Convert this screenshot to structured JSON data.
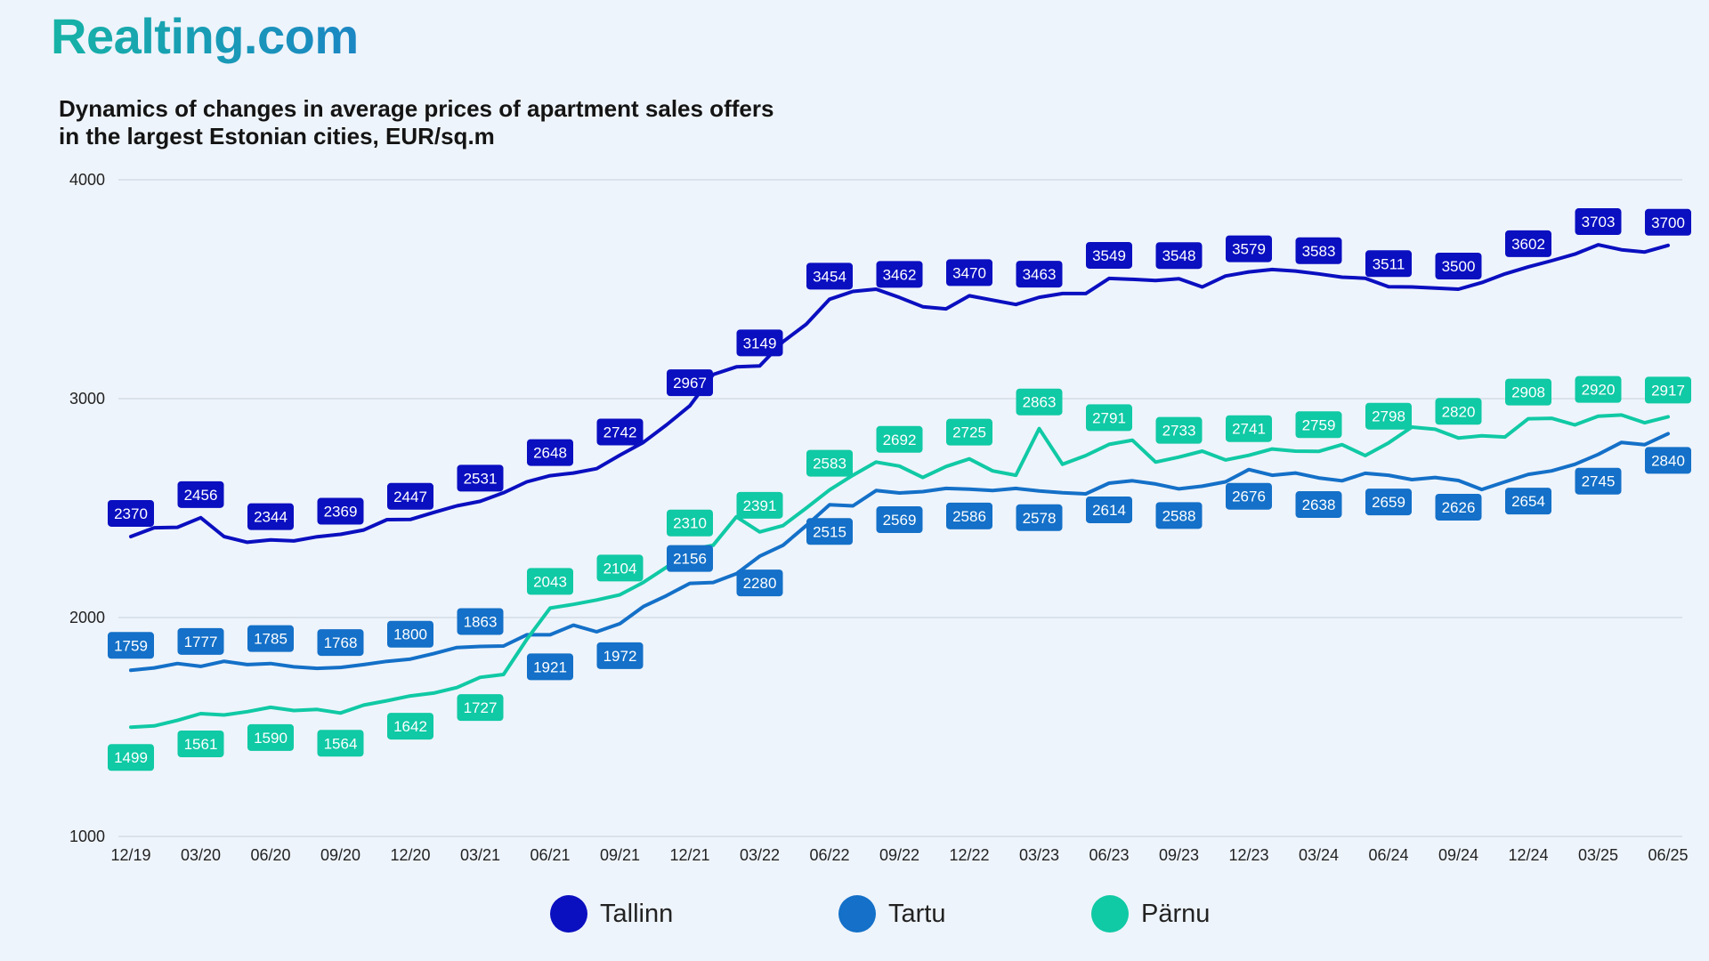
{
  "brand": {
    "logo_text": "Realting.com"
  },
  "chart_data": {
    "type": "line",
    "title_lines": [
      "Dynamics of changes in average prices of apartment sales offers",
      "in the largest Estonian cities, EUR/sq.m"
    ],
    "ylim": [
      1000,
      4000
    ],
    "yticks": [
      1000,
      2000,
      3000,
      4000
    ],
    "grid": true,
    "legend_position": "bottom",
    "x_tick_labels": [
      "12/19",
      "03/20",
      "06/20",
      "09/20",
      "12/20",
      "03/21",
      "06/21",
      "09/21",
      "12/21",
      "03/22",
      "06/22",
      "09/22",
      "12/22",
      "03/23",
      "06/23",
      "09/23",
      "12/23",
      "03/24",
      "06/24",
      "09/24",
      "12/24",
      "03/25",
      "06/25"
    ],
    "series": [
      {
        "name": "Tallinn",
        "color": "#0a0fc0",
        "values": [
          2370,
          2410,
          2412,
          2456,
          2370,
          2344,
          2355,
          2350,
          2369,
          2380,
          2400,
          2447,
          2448,
          2480,
          2510,
          2531,
          2570,
          2620,
          2648,
          2660,
          2680,
          2742,
          2800,
          2880,
          2967,
          3110,
          3145,
          3149,
          3260,
          3340,
          3454,
          3490,
          3500,
          3462,
          3420,
          3410,
          3470,
          3450,
          3430,
          3463,
          3480,
          3480,
          3549,
          3545,
          3540,
          3548,
          3510,
          3560,
          3579,
          3590,
          3583,
          3570,
          3555,
          3550,
          3511,
          3510,
          3505,
          3500,
          3530,
          3570,
          3602,
          3630,
          3660,
          3703,
          3680,
          3670,
          3700
        ],
        "labels": [
          [
            0,
            2370
          ],
          [
            3,
            2456
          ],
          [
            6,
            2344
          ],
          [
            9,
            2369
          ],
          [
            12,
            2447
          ],
          [
            15,
            2531
          ],
          [
            18,
            2648
          ],
          [
            21,
            2742
          ],
          [
            24,
            2967
          ],
          [
            27,
            3149
          ],
          [
            30,
            3454
          ],
          [
            33,
            3462
          ],
          [
            36,
            3470
          ],
          [
            39,
            3463
          ],
          [
            42,
            3549
          ],
          [
            45,
            3548
          ],
          [
            48,
            3579
          ],
          [
            51,
            3583
          ],
          [
            54,
            3511
          ],
          [
            57,
            3500
          ],
          [
            60,
            3602
          ],
          [
            63,
            3703
          ],
          [
            66,
            3700
          ]
        ]
      },
      {
        "name": "Tartu",
        "color": "#1470c8",
        "values": [
          1759,
          1770,
          1790,
          1777,
          1800,
          1785,
          1790,
          1775,
          1768,
          1772,
          1785,
          1800,
          1810,
          1835,
          1863,
          1868,
          1870,
          1921,
          1921,
          1965,
          1935,
          1972,
          2050,
          2100,
          2156,
          2160,
          2200,
          2280,
          2330,
          2420,
          2515,
          2510,
          2580,
          2569,
          2575,
          2590,
          2586,
          2580,
          2590,
          2578,
          2570,
          2565,
          2614,
          2625,
          2610,
          2588,
          2600,
          2620,
          2676,
          2650,
          2660,
          2638,
          2625,
          2659,
          2650,
          2630,
          2640,
          2626,
          2585,
          2620,
          2654,
          2670,
          2700,
          2745,
          2800,
          2790,
          2840
        ],
        "labels": [
          [
            0,
            1759
          ],
          [
            3,
            1777
          ],
          [
            6,
            1785
          ],
          [
            9,
            1768
          ],
          [
            12,
            1800
          ],
          [
            15,
            1863
          ],
          [
            18,
            1921
          ],
          [
            21,
            1972
          ],
          [
            24,
            2156
          ],
          [
            27,
            2280
          ],
          [
            30,
            2515
          ],
          [
            33,
            2569
          ],
          [
            36,
            2586
          ],
          [
            39,
            2578
          ],
          [
            42,
            2614
          ],
          [
            45,
            2588
          ],
          [
            48,
            2676
          ],
          [
            51,
            2638
          ],
          [
            54,
            2659
          ],
          [
            57,
            2626
          ],
          [
            60,
            2654
          ],
          [
            63,
            2745
          ],
          [
            66,
            2840
          ]
        ]
      },
      {
        "name": "Pärnu",
        "color": "#10c9a5",
        "values": [
          1499,
          1505,
          1530,
          1561,
          1555,
          1570,
          1590,
          1575,
          1580,
          1564,
          1600,
          1620,
          1642,
          1655,
          1680,
          1727,
          1740,
          1900,
          2043,
          2060,
          2080,
          2104,
          2160,
          2230,
          2310,
          2330,
          2460,
          2391,
          2420,
          2500,
          2583,
          2650,
          2710,
          2692,
          2640,
          2690,
          2725,
          2670,
          2650,
          2863,
          2700,
          2740,
          2791,
          2810,
          2710,
          2733,
          2760,
          2720,
          2741,
          2770,
          2760,
          2759,
          2790,
          2740,
          2798,
          2870,
          2860,
          2820,
          2830,
          2825,
          2908,
          2910,
          2880,
          2920,
          2925,
          2890,
          2917
        ],
        "labels": [
          [
            0,
            1499
          ],
          [
            3,
            1561
          ],
          [
            6,
            1590
          ],
          [
            9,
            1564
          ],
          [
            12,
            1642
          ],
          [
            15,
            1727
          ],
          [
            18,
            2043
          ],
          [
            21,
            2104
          ],
          [
            24,
            2310
          ],
          [
            27,
            2391
          ],
          [
            30,
            2583
          ],
          [
            33,
            2692
          ],
          [
            36,
            2725
          ],
          [
            39,
            2863
          ],
          [
            42,
            2791
          ],
          [
            45,
            2733
          ],
          [
            48,
            2741
          ],
          [
            51,
            2759
          ],
          [
            54,
            2798
          ],
          [
            57,
            2820
          ],
          [
            60,
            2908
          ],
          [
            63,
            2920
          ],
          [
            66,
            2917
          ]
        ]
      }
    ]
  }
}
